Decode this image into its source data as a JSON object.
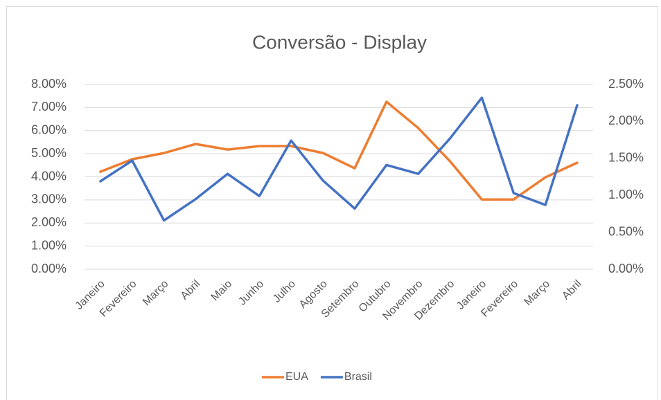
{
  "chart_data": {
    "type": "line",
    "title": "Conversão - Display",
    "categories": [
      "Janeiro",
      "Fevereiro",
      "Março",
      "Abril",
      "Maio",
      "Junho",
      "Julho",
      "Agosto",
      "Setembro",
      "Outubro",
      "Novembro",
      "Dezembro",
      "Janeiro",
      "Fevereiro",
      "Março",
      "Abril"
    ],
    "series": [
      {
        "name": "EUA",
        "color": "#ed7d31",
        "values": [
          4.22,
          4.76,
          5.03,
          5.42,
          5.18,
          5.33,
          5.33,
          5.03,
          4.37,
          7.25,
          6.11,
          4.67,
          3.02,
          3.02,
          3.98,
          4.61
        ]
      },
      {
        "name": "Brasil",
        "color": "#4472c4",
        "axis": "y2",
        "values": [
          1.19,
          1.47,
          0.66,
          0.95,
          1.29,
          0.99,
          1.74,
          1.2,
          0.82,
          1.41,
          1.29,
          1.77,
          2.32,
          1.03,
          0.87,
          2.22
        ]
      }
    ],
    "ylim": [
      0,
      8
    ],
    "yticks": [
      {
        "value": 0,
        "label": "0.00%"
      },
      {
        "value": 1,
        "label": "1.00%"
      },
      {
        "value": 2,
        "label": "2.00%"
      },
      {
        "value": 3,
        "label": "3.00%"
      },
      {
        "value": 4,
        "label": "4.00%"
      },
      {
        "value": 5,
        "label": "5.00%"
      },
      {
        "value": 6,
        "label": "6.00%"
      },
      {
        "value": 7,
        "label": "7.00%"
      },
      {
        "value": 8,
        "label": "8.00%"
      }
    ],
    "y2lim": [
      0,
      2.5
    ],
    "y2ticks": [
      {
        "value": 0,
        "label": "0.00%"
      },
      {
        "value": 0.5,
        "label": "0.50%"
      },
      {
        "value": 1,
        "label": "1.00%"
      },
      {
        "value": 1.5,
        "label": "1.50%"
      },
      {
        "value": 2,
        "label": "2.00%"
      },
      {
        "value": 2.5,
        "label": "2.50%"
      }
    ],
    "grid": true,
    "legend": "bottom"
  }
}
